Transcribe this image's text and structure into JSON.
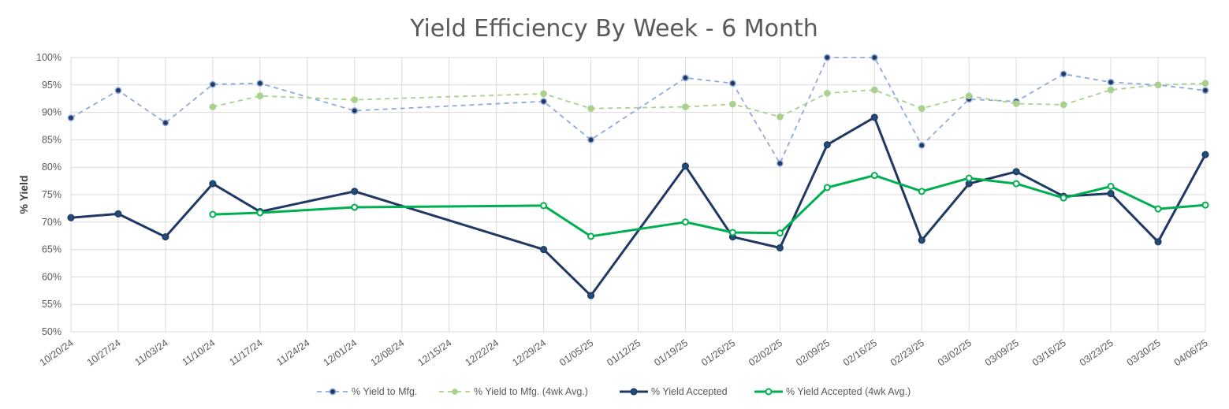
{
  "chart_data": {
    "type": "line",
    "title": "Yield Efficiency By Week - 6 Month",
    "xlabel": "",
    "ylabel": "% Yield",
    "ylim": [
      50,
      100
    ],
    "y_ticks": [
      "50%",
      "55%",
      "60%",
      "65%",
      "70%",
      "75%",
      "80%",
      "85%",
      "90%",
      "95%",
      "100%"
    ],
    "y_tick_values": [
      50,
      55,
      60,
      65,
      70,
      75,
      80,
      85,
      90,
      95,
      100
    ],
    "categories": [
      "10/20/24",
      "10/27/24",
      "11/03/24",
      "11/10/24",
      "11/17/24",
      "11/24/24",
      "12/01/24",
      "12/08/24",
      "12/15/24",
      "12/22/24",
      "12/29/24",
      "01/05/25",
      "01/12/25",
      "01/19/25",
      "01/26/25",
      "02/02/25",
      "02/09/25",
      "02/16/25",
      "02/23/25",
      "03/02/25",
      "03/09/25",
      "03/16/25",
      "03/23/25",
      "03/30/25",
      "04/06/25"
    ],
    "grid": true,
    "legend_position": "bottom",
    "series": [
      {
        "name": "% Yield to Mfg.",
        "color": "#8eaadb",
        "marker_color": "#1f3864",
        "style": "dashed",
        "values": [
          89.0,
          94.0,
          88.1,
          95.1,
          95.3,
          null,
          90.3,
          null,
          null,
          null,
          92.0,
          85.0,
          null,
          96.3,
          95.3,
          80.7,
          100.0,
          100.0,
          84.0,
          92.4,
          92.0,
          97.0,
          95.5,
          95.0,
          94.0
        ]
      },
      {
        "name": "% Yield to Mfg. (4wk Avg.)",
        "color": "#a9d18e",
        "marker_color": "#a9d18e",
        "style": "dashed",
        "values": [
          null,
          null,
          null,
          91.0,
          93.0,
          null,
          92.3,
          null,
          null,
          null,
          93.4,
          90.7,
          null,
          91.0,
          91.5,
          89.2,
          93.5,
          94.1,
          90.7,
          93.0,
          91.6,
          91.4,
          94.1,
          95.0,
          95.3
        ]
      },
      {
        "name": "% Yield Accepted",
        "color": "#203864",
        "marker_color": "#1f4e79",
        "style": "solid",
        "values": [
          70.8,
          71.5,
          67.3,
          77.0,
          71.9,
          null,
          75.6,
          null,
          null,
          null,
          65.0,
          56.6,
          null,
          80.2,
          67.3,
          65.3,
          84.1,
          89.1,
          66.7,
          77.0,
          79.2,
          74.7,
          75.2,
          66.4,
          82.3
        ]
      },
      {
        "name": "% Yield Accepted (4wk Avg.)",
        "color": "#00b050",
        "marker_color": "#00b050",
        "style": "solid",
        "values": [
          null,
          null,
          null,
          71.4,
          71.7,
          null,
          72.7,
          null,
          null,
          null,
          73.0,
          67.4,
          null,
          70.0,
          68.1,
          68.0,
          76.3,
          78.5,
          75.6,
          78.0,
          77.0,
          74.4,
          76.5,
          72.4,
          73.1
        ]
      }
    ]
  }
}
